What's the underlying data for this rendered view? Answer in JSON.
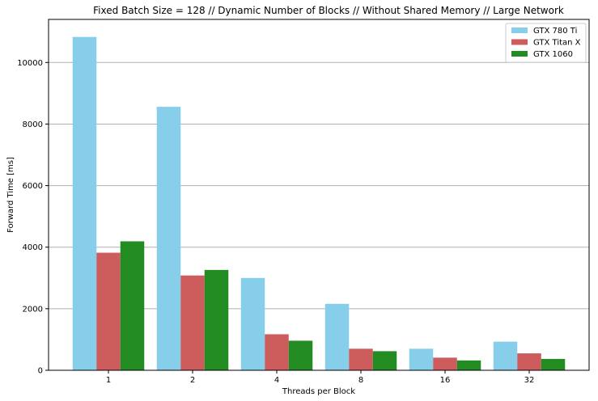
{
  "chart_data": {
    "type": "bar",
    "title": "Fixed Batch Size = 128 // Dynamic Number of Blocks // Without Shared Memory // Large Network",
    "xlabel": "Threads per Block",
    "ylabel": "Forward Time [ms]",
    "categories": [
      "1",
      "2",
      "4",
      "8",
      "16",
      "32"
    ],
    "ylim": [
      0,
      11400
    ],
    "yticks": [
      0,
      2000,
      4000,
      6000,
      8000,
      10000
    ],
    "grid": "y",
    "legend_position": "top-right",
    "series": [
      {
        "name": "GTX 780 Ti",
        "color": "#87ceeb",
        "values": [
          10830,
          8560,
          3000,
          2160,
          700,
          930
        ]
      },
      {
        "name": "GTX Titan X",
        "color": "#cd5c5c",
        "values": [
          3820,
          3080,
          1170,
          700,
          410,
          550
        ]
      },
      {
        "name": "GTX 1060",
        "color": "#228b22",
        "values": [
          4190,
          3260,
          960,
          620,
          320,
          370
        ]
      }
    ]
  }
}
